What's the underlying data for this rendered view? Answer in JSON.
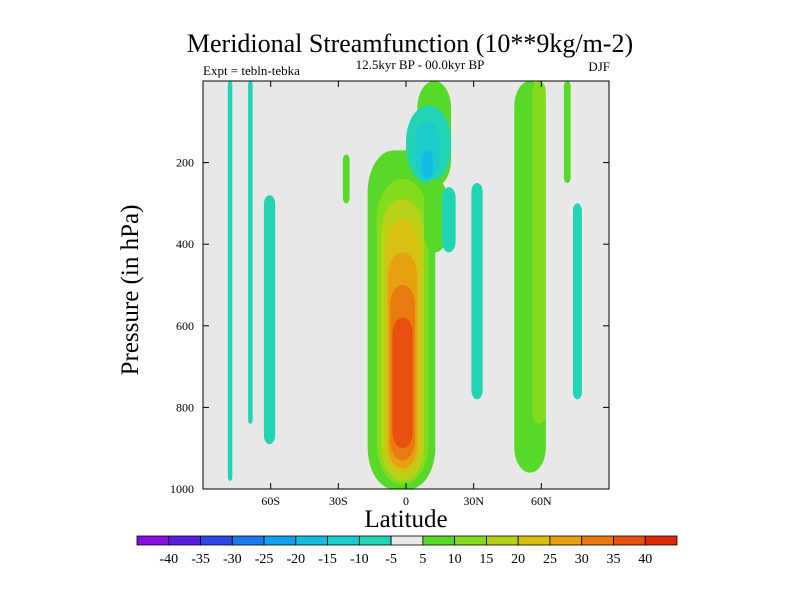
{
  "chart_data": {
    "type": "heatmap",
    "plot_kind": "filled contour (latitude-pressure cross section)",
    "title": "Meridional Streamfunction (10**9kg/m-2)",
    "subtitle_center": "12.5kyr BP - 00.0kyr BP",
    "subtitle_left": "Expt = tebln-tebka",
    "subtitle_right": "DJF",
    "xlabel": "Latitude",
    "ylabel": "Pressure (in hPa)",
    "xlim": [
      -90,
      90
    ],
    "ylim": [
      1000,
      0
    ],
    "x_ticks": [
      {
        "value": -60,
        "label": "60S"
      },
      {
        "value": -30,
        "label": "30S"
      },
      {
        "value": 0,
        "label": "0"
      },
      {
        "value": 30,
        "label": "30N"
      },
      {
        "value": 60,
        "label": "60N"
      }
    ],
    "y_ticks": [
      {
        "value": 200,
        "label": "200"
      },
      {
        "value": 400,
        "label": "400"
      },
      {
        "value": 600,
        "label": "600"
      },
      {
        "value": 800,
        "label": "800"
      },
      {
        "value": 1000,
        "label": "1000"
      }
    ],
    "colorbar": {
      "levels": [
        -40,
        -35,
        -30,
        -25,
        -20,
        -15,
        -10,
        -5,
        5,
        10,
        15,
        20,
        25,
        30,
        35,
        40
      ],
      "labels": [
        "-40",
        "-35",
        "-30",
        "-25",
        "-20",
        "-15",
        "-10",
        "-5",
        "5",
        "10",
        "15",
        "20",
        "25",
        "30",
        "35",
        "40"
      ],
      "colors": [
        "#8a10e0",
        "#5a1ee0",
        "#3248e6",
        "#1e78ee",
        "#14a0ec",
        "#14bce0",
        "#1ccccc",
        "#20d4b4",
        "#e8e8e8",
        "#58d828",
        "#84dc1c",
        "#b8d018",
        "#d8c010",
        "#e6a010",
        "#e87a10",
        "#e85010",
        "#e02808"
      ]
    },
    "background_color": "#e8e8e8",
    "regions": [
      {
        "value": -7,
        "lon": [
          -79,
          -77
        ],
        "p": [
          0,
          980
        ]
      },
      {
        "value": -7,
        "lon": [
          -70,
          -68
        ],
        "p": [
          0,
          840
        ]
      },
      {
        "value": -7,
        "lon": [
          -63,
          -58
        ],
        "p": [
          280,
          890
        ]
      },
      {
        "value": 7,
        "lon": [
          -28,
          -25
        ],
        "p": [
          180,
          300
        ]
      },
      {
        "value": 7,
        "lon": [
          -17,
          13
        ],
        "p": [
          170,
          1000
        ]
      },
      {
        "value": 12,
        "lon": [
          -13,
          10
        ],
        "p": [
          240,
          990
        ]
      },
      {
        "value": 17,
        "lon": [
          -11,
          8
        ],
        "p": [
          290,
          980
        ]
      },
      {
        "value": 22,
        "lon": [
          -9,
          6
        ],
        "p": [
          340,
          960
        ]
      },
      {
        "value": 27,
        "lon": [
          -8,
          5
        ],
        "p": [
          420,
          950
        ]
      },
      {
        "value": 32,
        "lon": [
          -7,
          4
        ],
        "p": [
          500,
          930
        ]
      },
      {
        "value": 37,
        "lon": [
          -6,
          3
        ],
        "p": [
          580,
          900
        ]
      },
      {
        "value": 7,
        "lon": [
          5,
          20
        ],
        "p": [
          0,
          260
        ]
      },
      {
        "value": -8,
        "lon": [
          0,
          20
        ],
        "p": [
          60,
          250
        ]
      },
      {
        "value": -13,
        "lon": [
          4,
          15
        ],
        "p": [
          100,
          240
        ]
      },
      {
        "value": -18,
        "lon": [
          7,
          12
        ],
        "p": [
          170,
          240
        ]
      },
      {
        "value": 7,
        "lon": [
          8,
          18
        ],
        "p": [
          240,
          420
        ]
      },
      {
        "value": -7,
        "lon": [
          16,
          22
        ],
        "p": [
          260,
          420
        ]
      },
      {
        "value": -7,
        "lon": [
          29,
          34
        ],
        "p": [
          250,
          780
        ]
      },
      {
        "value": 7,
        "lon": [
          48,
          62
        ],
        "p": [
          0,
          960
        ]
      },
      {
        "value": 12,
        "lon": [
          56,
          62
        ],
        "p": [
          0,
          840
        ]
      },
      {
        "value": 7,
        "lon": [
          70,
          73
        ],
        "p": [
          0,
          250
        ]
      },
      {
        "value": -7,
        "lon": [
          74,
          78
        ],
        "p": [
          300,
          780
        ]
      }
    ]
  }
}
